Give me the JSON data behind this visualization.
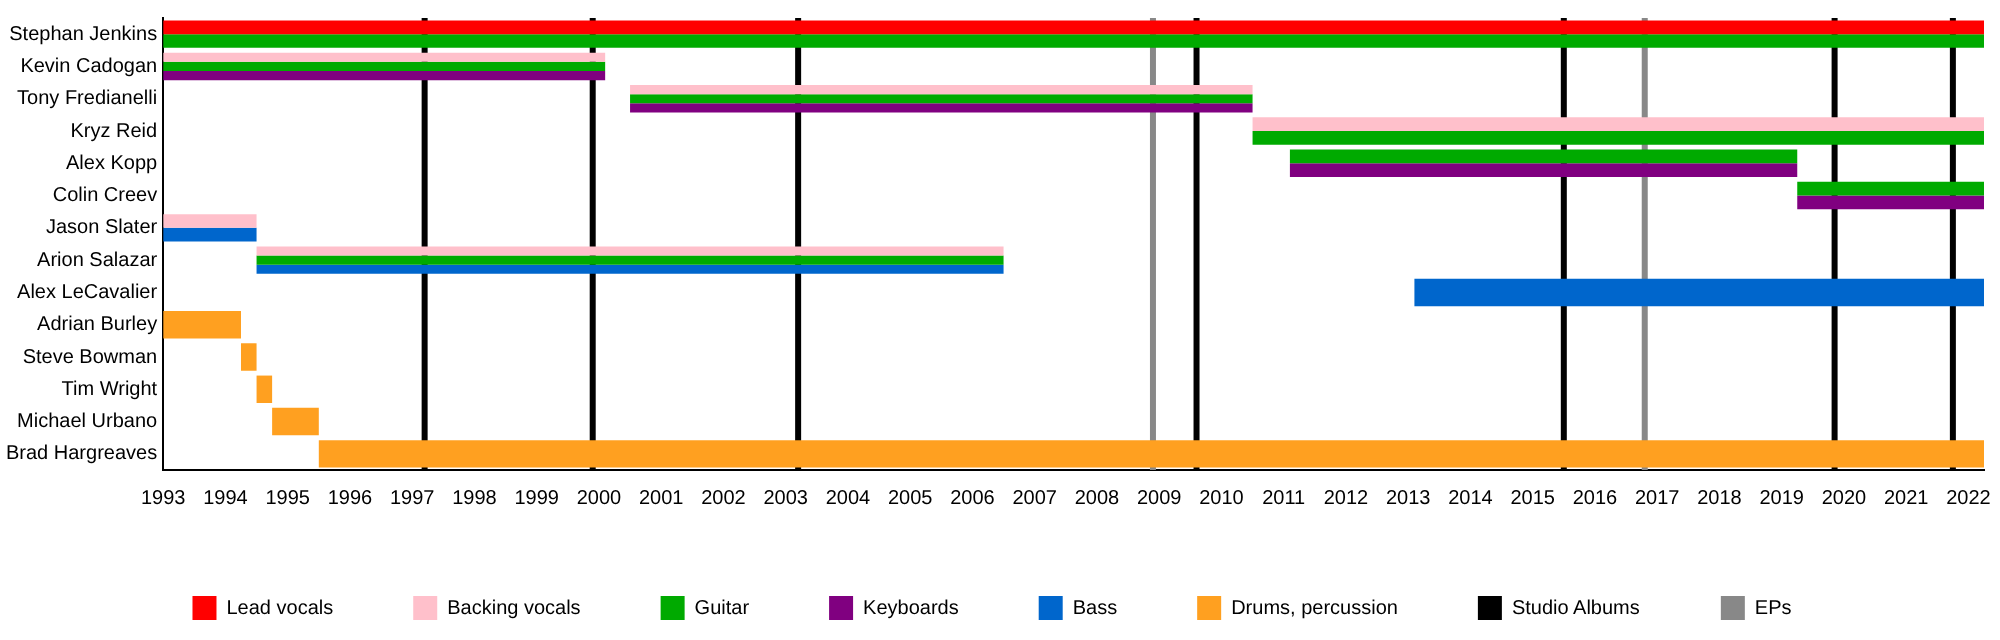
{
  "chart_data": {
    "type": "bar",
    "orientation": "horizontal",
    "categories": [
      "Stephan Jenkins",
      "Kevin Cadogan",
      "Tony Fredianelli",
      "Kryz Reid",
      "Alex Kopp",
      "Colin Creev",
      "Jason Slater",
      "Arion Salazar",
      "Alex LeCavalier",
      "Adrian Burley",
      "Steve Bowman",
      "Tim Wright",
      "Michael Urbano",
      "Brad Hargreaves"
    ],
    "series": [
      {
        "name": "Lead vocals",
        "color": "#ff0000",
        "base": [
          1993,
          null,
          null,
          null,
          null,
          null,
          null,
          null,
          null,
          null,
          null,
          null,
          null,
          null
        ],
        "values": [
          29.25,
          null,
          null,
          null,
          null,
          null,
          null,
          null,
          null,
          null,
          null,
          null,
          null,
          null
        ]
      },
      {
        "name": "Backing vocals",
        "color": "#ffc0cb",
        "base": [
          null,
          1993,
          2000.5,
          2010.5,
          null,
          null,
          1993,
          1994.5,
          null,
          null,
          null,
          null,
          null,
          null
        ],
        "values": [
          null,
          7.1,
          10,
          11.75,
          null,
          null,
          1.5,
          12,
          null,
          null,
          null,
          null,
          null,
          null
        ]
      },
      {
        "name": "Guitar",
        "color": "#00aa00",
        "base": [
          1993,
          1993,
          2000.5,
          2010.5,
          2011.1,
          2019.25,
          null,
          1994.5,
          null,
          null,
          null,
          null,
          null,
          null
        ],
        "values": [
          29.25,
          7.1,
          10,
          11.75,
          8.15,
          3,
          null,
          12,
          null,
          null,
          null,
          null,
          null,
          null
        ]
      },
      {
        "name": "Keyboards",
        "color": "#800080",
        "base": [
          null,
          1993,
          2000.5,
          null,
          2011.1,
          2019.25,
          null,
          null,
          null,
          null,
          null,
          null,
          null,
          null
        ],
        "values": [
          null,
          7.1,
          10,
          null,
          8.15,
          3,
          null,
          null,
          null,
          null,
          null,
          null,
          null,
          null
        ]
      },
      {
        "name": "Bass",
        "color": "#0066cc",
        "base": [
          null,
          null,
          null,
          null,
          null,
          null,
          1993,
          1994.5,
          2013.1,
          null,
          null,
          null,
          null,
          null
        ],
        "values": [
          null,
          null,
          null,
          null,
          null,
          null,
          1.5,
          12,
          9.15,
          null,
          null,
          null,
          null,
          null
        ]
      },
      {
        "name": "Drums, percussion",
        "color": "#ffa020",
        "base": [
          null,
          null,
          null,
          null,
          null,
          null,
          null,
          null,
          null,
          1993,
          1994.25,
          1994.5,
          1994.75,
          1995.5
        ],
        "values": [
          null,
          null,
          null,
          null,
          null,
          null,
          null,
          null,
          null,
          1.25,
          0.25,
          0.25,
          0.75,
          26.75
        ]
      }
    ],
    "xlim": [
      1993,
      2022.25
    ],
    "xticks": [
      1993,
      1994,
      1995,
      1996,
      1997,
      1998,
      1999,
      2000,
      2001,
      2002,
      2003,
      2004,
      2005,
      2006,
      2007,
      2008,
      2009,
      2010,
      2011,
      2012,
      2013,
      2014,
      2015,
      2016,
      2017,
      2018,
      2019,
      2020,
      2021,
      2022
    ],
    "ref_lines": [
      {
        "axis": "x",
        "value": 1997.2,
        "label": "Studio Albums",
        "color": "#000000"
      },
      {
        "axis": "x",
        "value": 1999.9,
        "color": "#000000"
      },
      {
        "axis": "x",
        "value": 2003.2,
        "color": "#000000"
      },
      {
        "axis": "x",
        "value": 2009.6,
        "color": "#000000"
      },
      {
        "axis": "x",
        "value": 2015.5,
        "color": "#000000"
      },
      {
        "axis": "x",
        "value": 2019.85,
        "color": "#000000"
      },
      {
        "axis": "x",
        "value": 2021.75,
        "color": "#000000"
      },
      {
        "axis": "x",
        "value": 2008.9,
        "label": "EPs",
        "color": "#888888"
      },
      {
        "axis": "x",
        "value": 2016.8,
        "color": "#888888"
      }
    ],
    "grid": false,
    "legend": "bottom"
  }
}
